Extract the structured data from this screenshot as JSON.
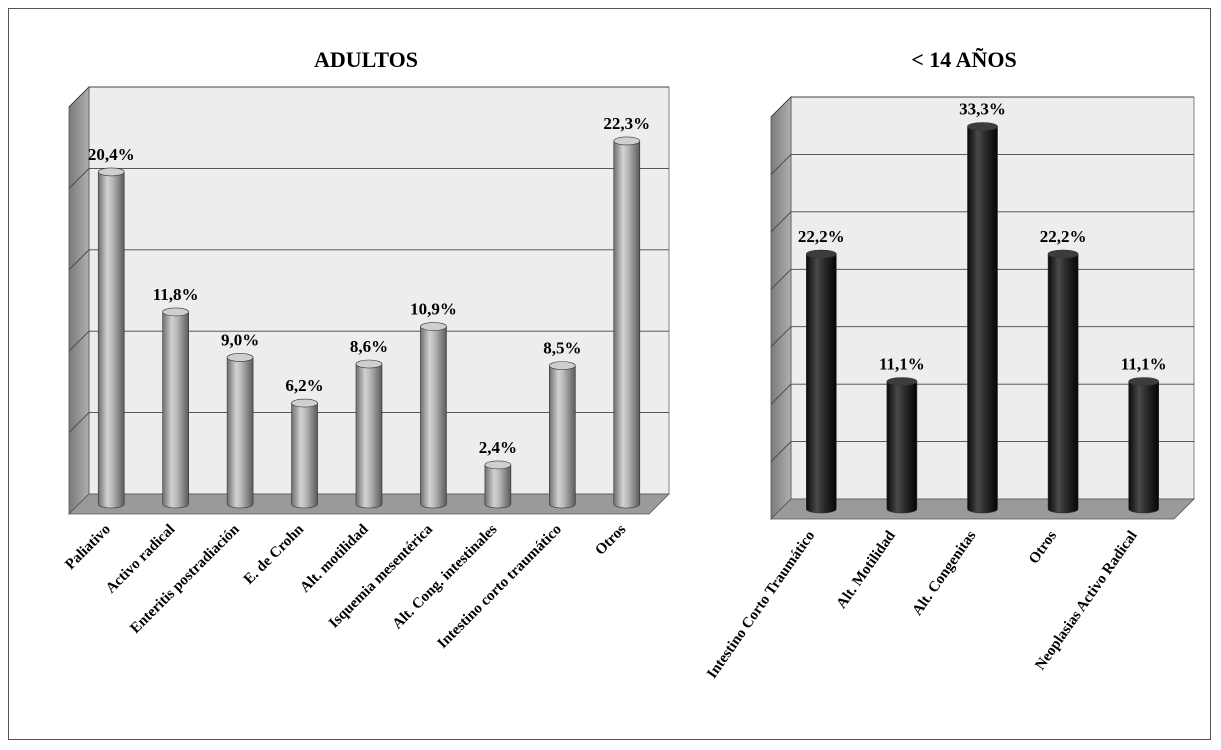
{
  "chart_data": [
    {
      "type": "bar",
      "title": "ADULTOS",
      "categories": [
        "Paliativo",
        "Activo radical",
        "Enteritis postradiación",
        "E. de Crohn",
        "Alt. motilidad",
        "Isquemia mesentérica",
        "Alt. Cong. intestinales",
        "Intestino corto traumático",
        "Otros"
      ],
      "values": [
        20.4,
        11.8,
        9.0,
        6.2,
        8.6,
        10.9,
        2.4,
        8.5,
        22.3
      ],
      "value_labels": [
        "20,4%",
        "11,8%",
        "9,0%",
        "6,2%",
        "8,6%",
        "10,9%",
        "2,4%",
        "8,5%",
        "22,3%"
      ],
      "ylim": [
        0,
        25
      ],
      "grid": true,
      "bar_color": "#a6a6a6"
    },
    {
      "type": "bar",
      "title": "< 14 AÑOS",
      "categories": [
        "Intestino Corto Traumático",
        "Alt. Motilidad",
        "Alt. Congenitas",
        "Otros",
        "Neoplasias Activo Radical"
      ],
      "values": [
        22.2,
        11.1,
        33.3,
        22.2,
        11.1
      ],
      "value_labels": [
        "22,2%",
        "11,1%",
        "33,3%",
        "22,2%",
        "11,1%"
      ],
      "ylim": [
        0,
        35
      ],
      "grid": true,
      "bar_color": "#262626"
    }
  ]
}
